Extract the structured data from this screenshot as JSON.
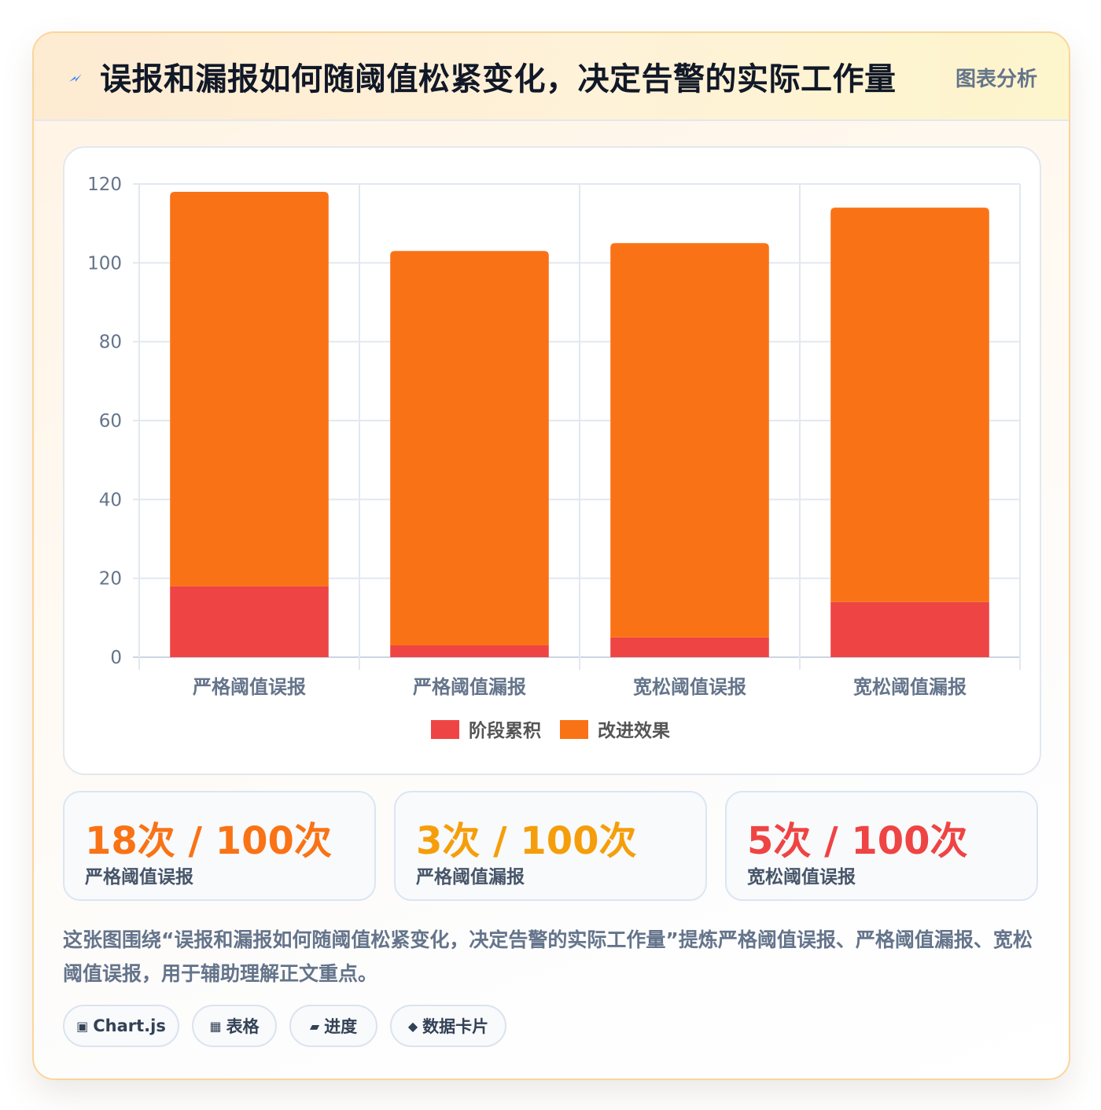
{
  "header": {
    "title": "误报和漏报如何随阈值松紧变化，决定告警的实际工作量",
    "tag": "图表分析",
    "icon": "lightning-icon"
  },
  "colors": {
    "series_a": "#ef4444",
    "series_b": "#f97316",
    "stat_1": "#f97316",
    "stat_2": "#f59e0b",
    "stat_3": "#ef4444"
  },
  "chart_data": {
    "type": "bar",
    "stacked": true,
    "categories": [
      "严格阈值误报",
      "严格阈值漏报",
      "宽松阈值误报",
      "宽松阈值漏报"
    ],
    "series": [
      {
        "name": "阶段累积",
        "values": [
          18,
          3,
          5,
          14
        ]
      },
      {
        "name": "改进效果",
        "values": [
          100,
          100,
          100,
          100
        ]
      }
    ],
    "yticks": [
      0,
      20,
      40,
      60,
      80,
      100,
      120
    ],
    "ylim": [
      0,
      120
    ],
    "grid": true,
    "legend": "bottom"
  },
  "stats": [
    {
      "value": "18次 / 100次",
      "label": "严格阈值误报"
    },
    {
      "value": "3次 / 100次",
      "label": "严格阈值漏报"
    },
    {
      "value": "5次 / 100次",
      "label": "宽松阈值误报"
    }
  ],
  "description": "这张图围绕“误报和漏报如何随阈值松紧变化，决定告警的实际工作量”提炼严格阈值误报、严格阈值漏报、宽松阈值误报，用于辅助理解正文重点。",
  "chips": [
    {
      "icon": "▣",
      "label": "Chart.js"
    },
    {
      "icon": "▦",
      "label": "表格"
    },
    {
      "icon": "▰",
      "label": "进度"
    },
    {
      "icon": "◆",
      "label": "数据卡片"
    }
  ]
}
